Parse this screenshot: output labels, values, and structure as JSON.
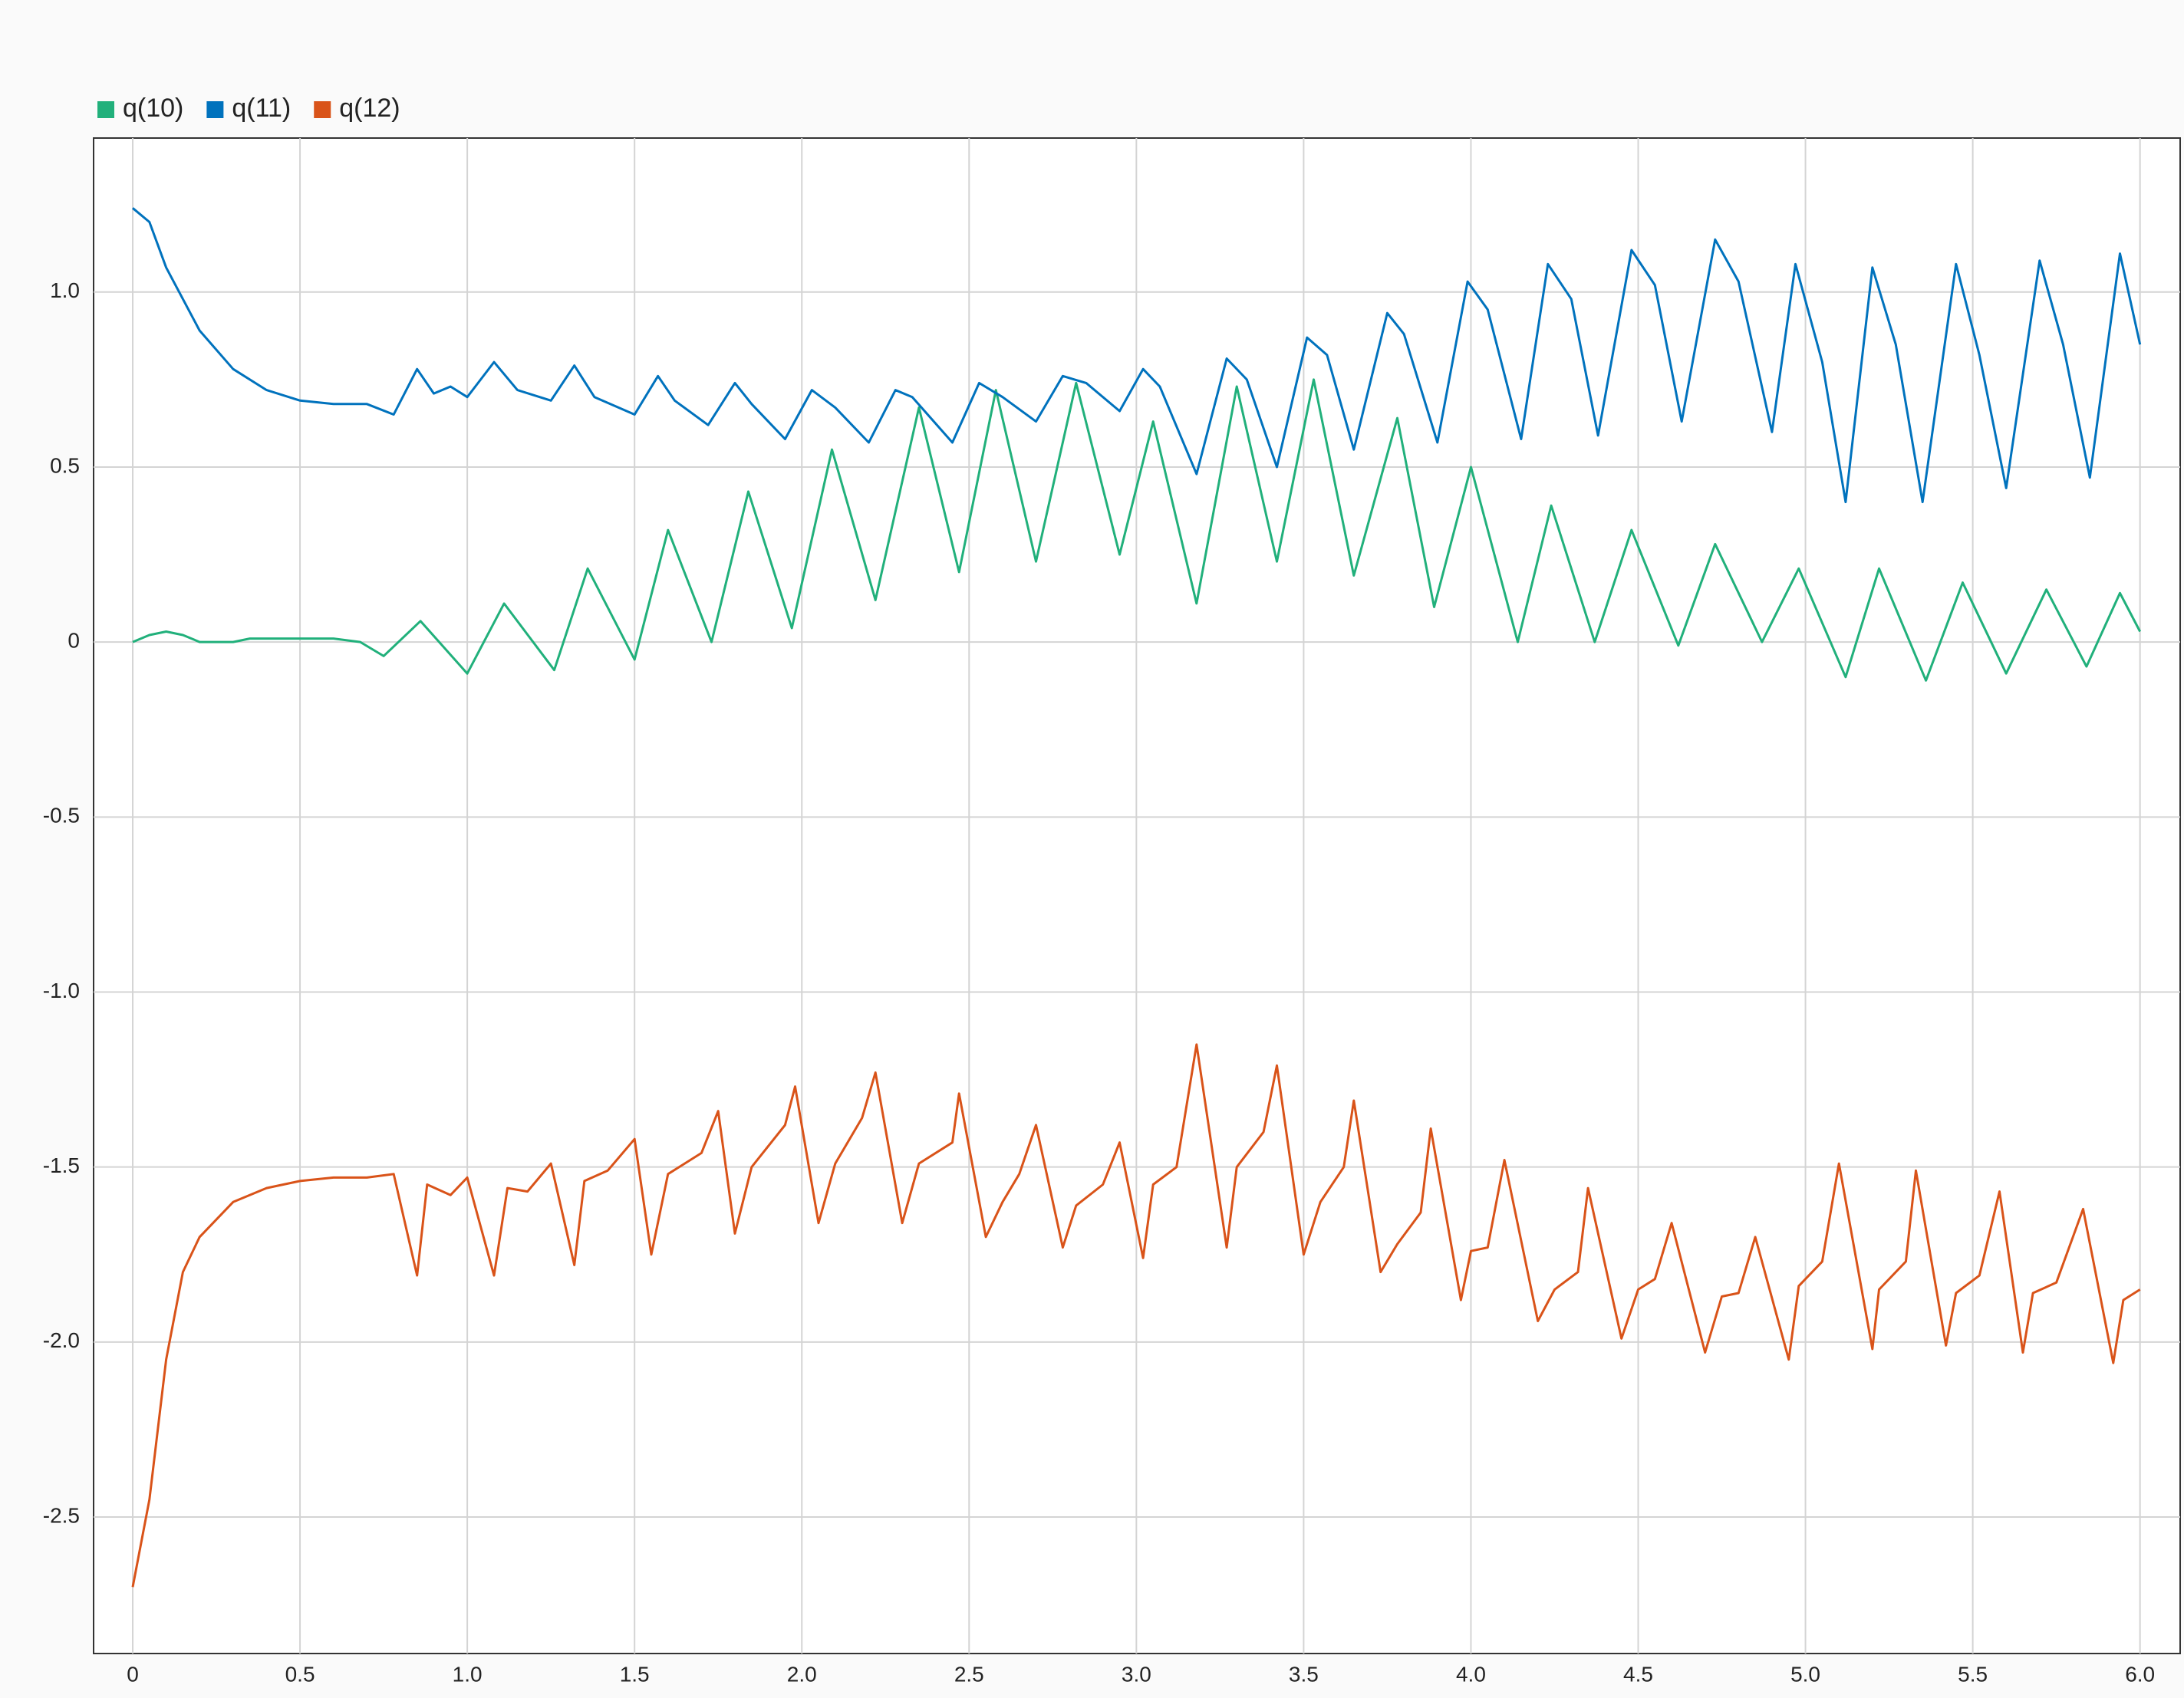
{
  "chart_data": {
    "type": "line",
    "series": [
      {
        "name": "q(10)",
        "color": "#21b07b",
        "x": [
          0,
          0.05,
          0.1,
          0.15,
          0.2,
          0.3,
          0.35,
          0.6,
          0.68,
          0.75,
          0.86,
          1.0,
          1.11,
          1.26,
          1.36,
          1.5,
          1.6,
          1.73,
          1.84,
          1.97,
          2.09,
          2.22,
          2.35,
          2.47,
          2.58,
          2.7,
          2.82,
          2.95,
          3.05,
          3.18,
          3.3,
          3.42,
          3.53,
          3.65,
          3.78,
          3.89,
          4.0,
          4.14,
          4.24,
          4.37,
          4.48,
          4.62,
          4.73,
          4.87,
          4.98,
          5.12,
          5.22,
          5.36,
          5.47,
          5.6,
          5.72,
          5.84,
          5.94,
          6.0
        ],
        "values": [
          0,
          0.02,
          0.03,
          0.02,
          0,
          0,
          0.01,
          0.01,
          0,
          -0.04,
          0.06,
          -0.09,
          0.11,
          -0.08,
          0.21,
          -0.05,
          0.32,
          0,
          0.43,
          0.04,
          0.55,
          0.12,
          0.67,
          0.2,
          0.72,
          0.23,
          0.74,
          0.25,
          0.63,
          0.11,
          0.73,
          0.23,
          0.75,
          0.19,
          0.64,
          0.1,
          0.5,
          0,
          0.39,
          0,
          0.32,
          -0.01,
          0.28,
          0,
          0.21,
          -0.1,
          0.21,
          -0.11,
          0.17,
          -0.09,
          0.15,
          -0.07,
          0.14,
          0.03
        ]
      },
      {
        "name": "q(11)",
        "color": "#0072bd",
        "x": [
          0,
          0.05,
          0.1,
          0.2,
          0.3,
          0.4,
          0.5,
          0.6,
          0.7,
          0.78,
          0.85,
          0.9,
          0.95,
          1.0,
          1.08,
          1.15,
          1.25,
          1.32,
          1.38,
          1.5,
          1.57,
          1.62,
          1.72,
          1.8,
          1.85,
          1.95,
          2.03,
          2.1,
          2.2,
          2.28,
          2.33,
          2.45,
          2.53,
          2.6,
          2.7,
          2.78,
          2.85,
          2.95,
          3.02,
          3.07,
          3.18,
          3.27,
          3.33,
          3.42,
          3.51,
          3.57,
          3.65,
          3.75,
          3.8,
          3.9,
          3.99,
          4.05,
          4.15,
          4.23,
          4.3,
          4.38,
          4.48,
          4.55,
          4.63,
          4.73,
          4.8,
          4.9,
          4.97,
          5.05,
          5.12,
          5.2,
          5.27,
          5.35,
          5.45,
          5.52,
          5.6,
          5.7,
          5.77,
          5.85,
          5.94,
          6.0
        ],
        "values": [
          1.24,
          1.2,
          1.07,
          0.89,
          0.78,
          0.72,
          0.69,
          0.68,
          0.68,
          0.65,
          0.78,
          0.71,
          0.73,
          0.7,
          0.8,
          0.72,
          0.69,
          0.79,
          0.7,
          0.65,
          0.76,
          0.69,
          0.62,
          0.74,
          0.68,
          0.58,
          0.72,
          0.67,
          0.57,
          0.72,
          0.7,
          0.57,
          0.74,
          0.7,
          0.63,
          0.76,
          0.74,
          0.66,
          0.78,
          0.73,
          0.48,
          0.81,
          0.75,
          0.5,
          0.87,
          0.82,
          0.55,
          0.94,
          0.88,
          0.57,
          1.03,
          0.95,
          0.58,
          1.08,
          0.98,
          0.59,
          1.12,
          1.02,
          0.63,
          1.15,
          1.03,
          0.6,
          1.08,
          0.8,
          0.4,
          1.07,
          0.85,
          0.4,
          1.08,
          0.82,
          0.44,
          1.09,
          0.85,
          0.47,
          1.11,
          0.85
        ]
      },
      {
        "name": "q(12)",
        "color": "#d95319",
        "x": [
          0,
          0.05,
          0.1,
          0.15,
          0.2,
          0.3,
          0.4,
          0.5,
          0.6,
          0.7,
          0.78,
          0.85,
          0.88,
          0.95,
          1.0,
          1.08,
          1.12,
          1.18,
          1.25,
          1.32,
          1.35,
          1.42,
          1.5,
          1.55,
          1.6,
          1.7,
          1.75,
          1.8,
          1.85,
          1.95,
          1.98,
          2.05,
          2.1,
          2.18,
          2.22,
          2.3,
          2.35,
          2.45,
          2.47,
          2.55,
          2.6,
          2.65,
          2.7,
          2.78,
          2.82,
          2.9,
          2.95,
          3.02,
          3.05,
          3.12,
          3.18,
          3.27,
          3.3,
          3.38,
          3.42,
          3.5,
          3.55,
          3.62,
          3.65,
          3.73,
          3.78,
          3.85,
          3.88,
          3.97,
          4.0,
          4.05,
          4.1,
          4.2,
          4.25,
          4.32,
          4.35,
          4.45,
          4.5,
          4.55,
          4.6,
          4.7,
          4.75,
          4.8,
          4.85,
          4.95,
          4.98,
          5.05,
          5.1,
          5.2,
          5.22,
          5.3,
          5.33,
          5.42,
          5.45,
          5.52,
          5.58,
          5.65,
          5.68,
          5.75,
          5.83,
          5.92,
          5.95,
          6.0
        ],
        "values": [
          -2.7,
          -2.45,
          -2.05,
          -1.8,
          -1.7,
          -1.6,
          -1.56,
          -1.54,
          -1.53,
          -1.53,
          -1.52,
          -1.81,
          -1.55,
          -1.58,
          -1.53,
          -1.81,
          -1.56,
          -1.57,
          -1.49,
          -1.78,
          -1.54,
          -1.51,
          -1.42,
          -1.75,
          -1.52,
          -1.46,
          -1.34,
          -1.69,
          -1.5,
          -1.38,
          -1.27,
          -1.66,
          -1.49,
          -1.36,
          -1.23,
          -1.66,
          -1.49,
          -1.43,
          -1.29,
          -1.7,
          -1.6,
          -1.52,
          -1.38,
          -1.73,
          -1.61,
          -1.55,
          -1.43,
          -1.76,
          -1.55,
          -1.5,
          -1.15,
          -1.73,
          -1.5,
          -1.4,
          -1.21,
          -1.75,
          -1.6,
          -1.5,
          -1.31,
          -1.8,
          -1.72,
          -1.63,
          -1.39,
          -1.88,
          -1.74,
          -1.73,
          -1.48,
          -1.94,
          -1.85,
          -1.8,
          -1.56,
          -1.99,
          -1.85,
          -1.82,
          -1.66,
          -2.03,
          -1.87,
          -1.86,
          -1.7,
          -2.05,
          -1.84,
          -1.77,
          -1.49,
          -2.02,
          -1.85,
          -1.77,
          -1.51,
          -2.01,
          -1.86,
          -1.81,
          -1.57,
          -2.03,
          -1.86,
          -1.83,
          -1.62,
          -2.06,
          -1.88,
          -1.85
        ]
      }
    ],
    "xlim": [
      -0.117,
      6.12
    ],
    "ylim": [
      -2.89,
      1.44
    ],
    "xticks": [
      0,
      0.5,
      {
        "value": 1,
        "label": "1.0"
      },
      1.5,
      {
        "value": 2,
        "label": "2.0"
      },
      2.5,
      {
        "value": 3,
        "label": "3.0"
      },
      3.5,
      {
        "value": 4,
        "label": "4.0"
      },
      4.5,
      {
        "value": 5,
        "label": "5.0"
      },
      5.5,
      {
        "value": 6,
        "label": "6.0"
      }
    ],
    "yticks": [
      -2.5,
      {
        "value": -2,
        "label": "-2.0"
      },
      -1.5,
      {
        "value": -1,
        "label": "-1.0"
      },
      -0.5,
      0,
      0.5,
      {
        "value": 1,
        "label": "1.0"
      }
    ],
    "grid": true,
    "legend": "top-left"
  }
}
